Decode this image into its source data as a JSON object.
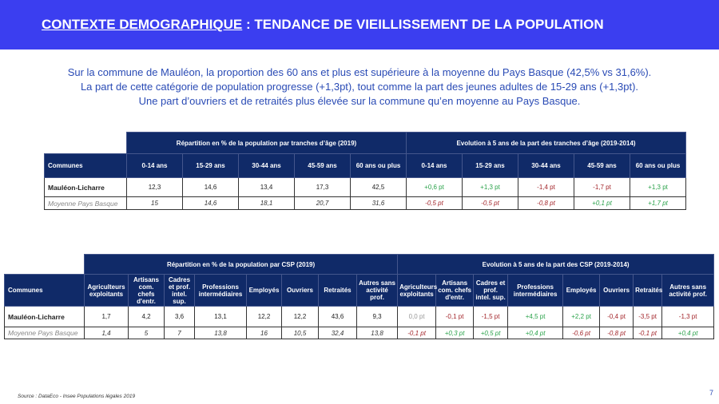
{
  "header": {
    "title_underlined": "CONTEXTE DEMOGRAPHIQUE",
    "title_rest": " : TENDANCE DE VIEILLISSEMENT DE LA POPULATION",
    "color": "#3b3ef0"
  },
  "intro": [
    "Sur la commune de Mauléon, la proportion des 60 ans et plus est supérieure à la moyenne du Pays Basque (42,5% vs 31,6%).",
    "La part de cette catégorie de population progresse (+1,3pt), tout comme la part des jeunes adultes de 15-29 ans (+1,3pt).",
    "Une part d’ouvriers et de retraités plus élevée sur la commune qu’en moyenne au Pays Basque."
  ],
  "age_table": {
    "group1": "Répartition en % de la population par tranches d’âge (2019)",
    "group2": "Evolution à 5 ans de la part des tranches d’âge (2019-2014)",
    "communes_label": "Communes",
    "columns": [
      "0-14 ans",
      "15-29 ans",
      "30-44 ans",
      "45-59 ans",
      "60 ans ou plus",
      "0-14 ans",
      "15-29 ans",
      "30-44 ans",
      "45-59 ans",
      "60 ans ou plus"
    ],
    "rows": [
      {
        "name": "Mauléon-Licharre",
        "values": [
          "12,3",
          "14,6",
          "13,4",
          "17,3",
          "42,5",
          "+0,6 pt",
          "+1,3 pt",
          "-1,4 pt",
          "-1,7 pt",
          "+1,3 pt"
        ]
      },
      {
        "name": "Moyenne Pays Basque",
        "values": [
          "15",
          "14,6",
          "18,1",
          "20,7",
          "31,6",
          "-0,5 pt",
          "-0,5 pt",
          "-0,8 pt",
          "+0,1 pt",
          "+1,7 pt"
        ]
      }
    ]
  },
  "csp_table": {
    "group1": "Répartition en % de la population par CSP (2019)",
    "group2": "Evolution à 5 ans de la part des CSP (2019-2014)",
    "communes_label": "Communes",
    "columns": [
      "Agriculteurs exploitants",
      "Artisans com. chefs d'entr.",
      "Cadres et prof. intel. sup.",
      "Professions intermédiaires",
      "Employés",
      "Ouvriers",
      "Retraités",
      "Autres sans activité prof.",
      "Agriculteurs exploitants",
      "Artisans com. chefs d'entr.",
      "Cadres et prof. intel. sup.",
      "Professions intermédiaires",
      "Employés",
      "Ouvriers",
      "Retraités",
      "Autres sans activité prof."
    ],
    "rows": [
      {
        "name": "Mauléon-Licharre",
        "values": [
          "1,7",
          "4,2",
          "3,6",
          "13,1",
          "12,2",
          "12,2",
          "43,6",
          "9,3",
          "0,0 pt",
          "-0,1 pt",
          "-1,5 pt",
          "+4,5 pt",
          "+2,2 pt",
          "-0,4 pt",
          "-3,5 pt",
          "-1,3 pt"
        ]
      },
      {
        "name": "Moyenne Pays Basque",
        "values": [
          "1,4",
          "5",
          "7",
          "13,8",
          "16",
          "10,5",
          "32,4",
          "13,8",
          "-0,1 pt",
          "+0,3 pt",
          "+0,5 pt",
          "+0,4 pt",
          "-0,6 pt",
          "-0,8 pt",
          "-0,1 pt",
          "+0,4 pt"
        ]
      }
    ]
  },
  "source": "Source : DataEco - Insee Populations légales 2019",
  "page_number": "7"
}
